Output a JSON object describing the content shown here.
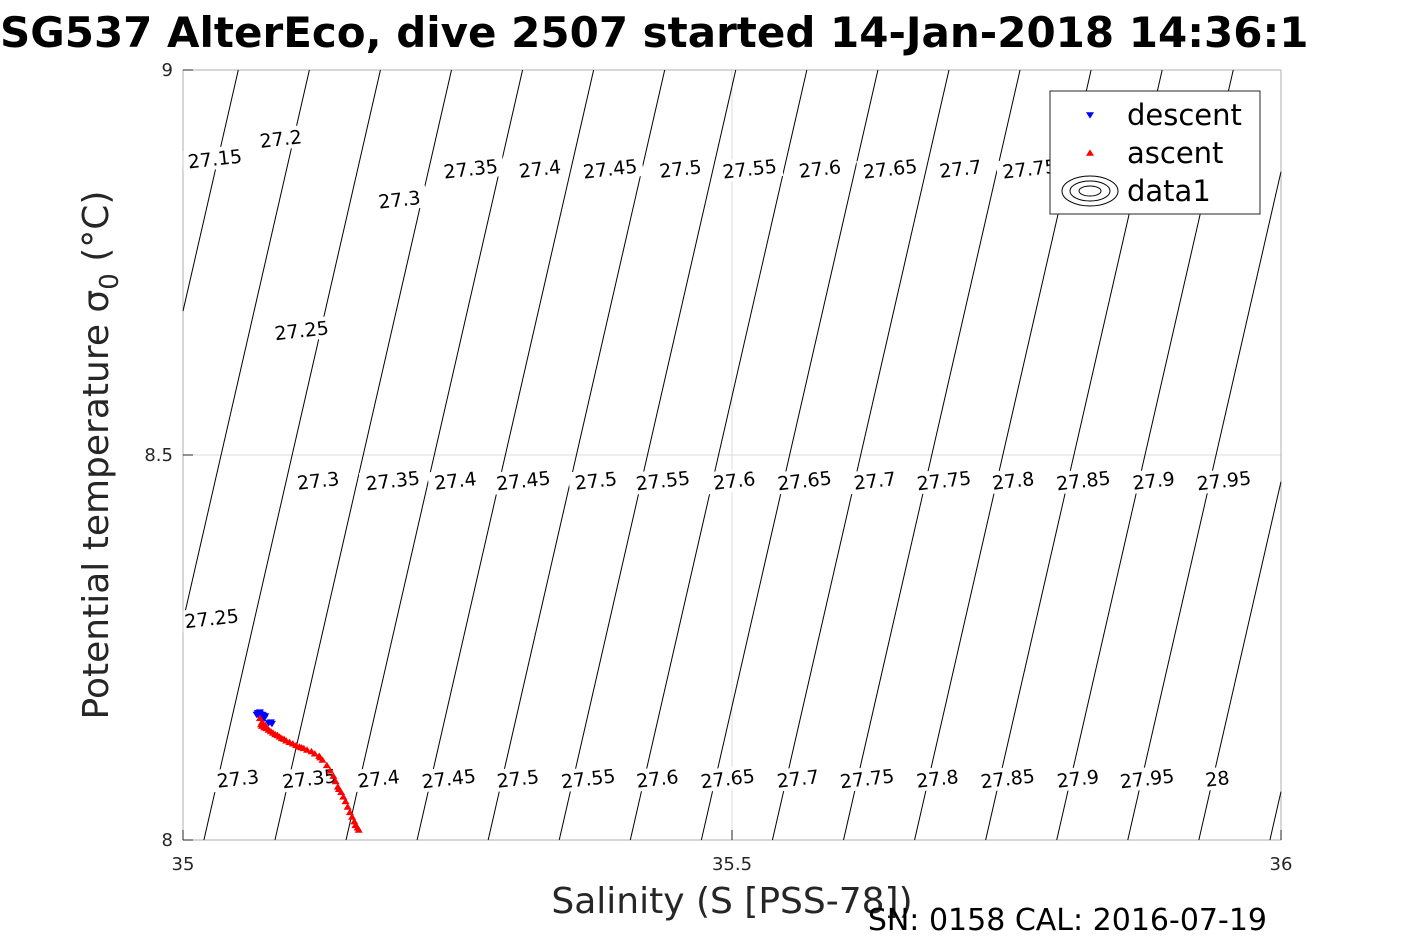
{
  "chart_data": {
    "type": "scatter",
    "title": "SG537 AlterEco, dive 2507 started 14-Jan-2018 14:36:1",
    "xlabel": "Salinity (S [PSS-78])",
    "ylabel_main": "Potential temperature σ",
    "ylabel_sub": "0",
    "ylabel_tail": " (°C)",
    "footer": "SN: 0158  CAL: 2016-07-19",
    "xlim": [
      35,
      36
    ],
    "ylim": [
      8,
      9
    ],
    "x_ticks": [
      "35",
      "35.5",
      "36"
    ],
    "y_ticks": [
      "8",
      "8.5",
      "9"
    ],
    "grid": true,
    "legend_position": "top-right",
    "legend": [
      {
        "label": "descent",
        "marker": "triangle-down",
        "color": "#0000ff"
      },
      {
        "label": "ascent",
        "marker": "triangle-up",
        "color": "#ff0000"
      },
      {
        "label": "data1",
        "marker": "contour-ellipse",
        "color": "#000000"
      }
    ],
    "density_contours": {
      "levels": [
        27.15,
        27.2,
        27.25,
        27.3,
        27.35,
        27.4,
        27.45,
        27.5,
        27.55,
        27.6,
        27.65,
        27.7,
        27.75,
        27.8,
        27.85,
        27.9,
        27.95,
        28
      ],
      "labels": [
        {
          "text": "27.15",
          "s": 35.029,
          "t": 8.885
        },
        {
          "text": "27.2",
          "s": 35.089,
          "t": 8.911
        },
        {
          "text": "27.25",
          "s": 35.108,
          "t": 8.662
        },
        {
          "text": "27.3",
          "s": 35.197,
          "t": 8.832
        },
        {
          "text": "27.35",
          "s": 35.262,
          "t": 8.872
        },
        {
          "text": "27.4",
          "s": 35.325,
          "t": 8.872
        },
        {
          "text": "27.45",
          "s": 35.389,
          "t": 8.872
        },
        {
          "text": "27.5",
          "s": 35.453,
          "t": 8.872
        },
        {
          "text": "27.55",
          "s": 35.516,
          "t": 8.872
        },
        {
          "text": "27.6",
          "s": 35.58,
          "t": 8.872
        },
        {
          "text": "27.65",
          "s": 35.644,
          "t": 8.872
        },
        {
          "text": "27.7",
          "s": 35.708,
          "t": 8.872
        },
        {
          "text": "27.75",
          "s": 35.771,
          "t": 8.872
        },
        {
          "text": "27.3",
          "s": 35.123,
          "t": 8.467
        },
        {
          "text": "27.35",
          "s": 35.191,
          "t": 8.467
        },
        {
          "text": "27.4",
          "s": 35.248,
          "t": 8.467
        },
        {
          "text": "27.45",
          "s": 35.31,
          "t": 8.467
        },
        {
          "text": "27.5",
          "s": 35.376,
          "t": 8.467
        },
        {
          "text": "27.55",
          "s": 35.437,
          "t": 8.467
        },
        {
          "text": "27.6",
          "s": 35.502,
          "t": 8.467
        },
        {
          "text": "27.65",
          "s": 35.566,
          "t": 8.467
        },
        {
          "text": "27.7",
          "s": 35.63,
          "t": 8.467
        },
        {
          "text": "27.75",
          "s": 35.693,
          "t": 8.467
        },
        {
          "text": "27.8",
          "s": 35.756,
          "t": 8.467
        },
        {
          "text": "27.85",
          "s": 35.82,
          "t": 8.467
        },
        {
          "text": "27.9",
          "s": 35.884,
          "t": 8.467
        },
        {
          "text": "27.95",
          "s": 35.948,
          "t": 8.467
        },
        {
          "text": "27.25",
          "s": 35.026,
          "t": 8.288
        },
        {
          "text": "27.3",
          "s": 35.05,
          "t": 8.08
        },
        {
          "text": "27.35",
          "s": 35.115,
          "t": 8.08
        },
        {
          "text": "27.4",
          "s": 35.178,
          "t": 8.08
        },
        {
          "text": "27.45",
          "s": 35.242,
          "t": 8.08
        },
        {
          "text": "27.5",
          "s": 35.305,
          "t": 8.08
        },
        {
          "text": "27.55",
          "s": 35.369,
          "t": 8.08
        },
        {
          "text": "27.6",
          "s": 35.432,
          "t": 8.08
        },
        {
          "text": "27.65",
          "s": 35.496,
          "t": 8.08
        },
        {
          "text": "27.7",
          "s": 35.56,
          "t": 8.08
        },
        {
          "text": "27.75",
          "s": 35.623,
          "t": 8.08
        },
        {
          "text": "27.8",
          "s": 35.687,
          "t": 8.08
        },
        {
          "text": "27.85",
          "s": 35.751,
          "t": 8.08
        },
        {
          "text": "27.9",
          "s": 35.815,
          "t": 8.08
        },
        {
          "text": "27.95",
          "s": 35.878,
          "t": 8.08
        },
        {
          "text": "28",
          "s": 35.942,
          "t": 8.08
        }
      ]
    },
    "series": [
      {
        "name": "descent",
        "marker": "triangle-down",
        "color": "#0000ff",
        "points": [
          [
            35.068,
            8.165
          ],
          [
            35.07,
            8.164
          ],
          [
            35.072,
            8.163
          ],
          [
            35.069,
            8.161
          ],
          [
            35.071,
            8.16
          ],
          [
            35.073,
            8.162
          ],
          [
            35.075,
            8.161
          ],
          [
            35.067,
            8.163
          ],
          [
            35.074,
            8.158
          ],
          [
            35.078,
            8.152
          ],
          [
            35.081,
            8.151
          ],
          [
            35.08,
            8.153
          ],
          [
            35.07,
            8.166
          ],
          [
            35.073,
            8.159
          ]
        ]
      },
      {
        "name": "ascent",
        "marker": "triangle-up",
        "color": "#ff0000",
        "points": [
          [
            35.07,
            8.158
          ],
          [
            35.071,
            8.15
          ],
          [
            35.072,
            8.148
          ],
          [
            35.074,
            8.146
          ],
          [
            35.076,
            8.145
          ],
          [
            35.078,
            8.143
          ],
          [
            35.08,
            8.141
          ],
          [
            35.082,
            8.139
          ],
          [
            35.084,
            8.137
          ],
          [
            35.086,
            8.136
          ],
          [
            35.088,
            8.134
          ],
          [
            35.09,
            8.132
          ],
          [
            35.092,
            8.131
          ],
          [
            35.094,
            8.129
          ],
          [
            35.097,
            8.127
          ],
          [
            35.1,
            8.125
          ],
          [
            35.103,
            8.123
          ],
          [
            35.106,
            8.121
          ],
          [
            35.11,
            8.119
          ],
          [
            35.113,
            8.117
          ],
          [
            35.117,
            8.115
          ],
          [
            35.12,
            8.112
          ],
          [
            35.124,
            8.109
          ],
          [
            35.127,
            8.104
          ],
          [
            35.131,
            8.097
          ],
          [
            35.134,
            8.09
          ],
          [
            35.137,
            8.083
          ],
          [
            35.139,
            8.076
          ],
          [
            35.141,
            8.069
          ],
          [
            35.144,
            8.062
          ],
          [
            35.146,
            8.056
          ],
          [
            35.148,
            8.05
          ],
          [
            35.15,
            8.043
          ],
          [
            35.152,
            8.036
          ],
          [
            35.154,
            8.03
          ],
          [
            35.156,
            8.024
          ],
          [
            35.157,
            8.019
          ],
          [
            35.159,
            8.016
          ],
          [
            35.16,
            8.013
          ],
          [
            35.072,
            8.153
          ],
          [
            35.075,
            8.149
          ],
          [
            35.108,
            8.12
          ],
          [
            35.125,
            8.107
          ],
          [
            35.142,
            8.066
          ]
        ]
      }
    ]
  }
}
